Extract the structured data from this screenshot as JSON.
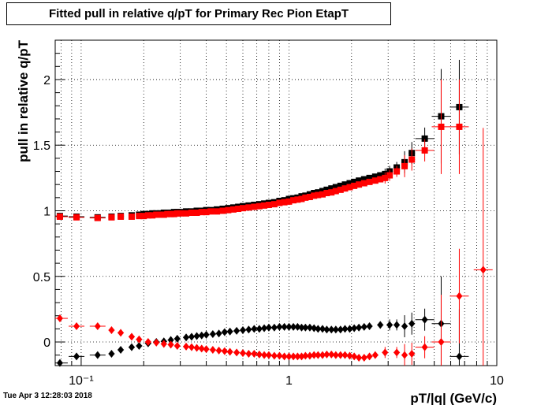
{
  "chart_data": {
    "type": "scatter",
    "title": "Fitted pull in relative q/pT for Primary Rec Pion EtapT",
    "xlabel": "pT/|q| (GeV/c)",
    "ylabel": "pull in relative q/pT",
    "xscale": "log",
    "xlim": [
      0.075,
      10
    ],
    "ylim": [
      -0.18,
      2.3
    ],
    "x_tick_labels": [
      "10⁻¹",
      "1",
      "10"
    ],
    "y_tick_labels": [
      "0",
      "0.5",
      "1",
      "1.5",
      "2"
    ],
    "grid": true,
    "series": [
      {
        "marker": "square",
        "color": "#000000",
        "points": [
          [
            0.079,
            0.96
          ],
          [
            0.095,
            0.955
          ],
          [
            0.12,
            0.95
          ],
          [
            0.14,
            0.955
          ],
          [
            0.155,
            0.96
          ],
          [
            0.175,
            0.965
          ],
          [
            0.19,
            0.97
          ],
          [
            0.2,
            0.975
          ],
          [
            0.21,
            0.975
          ],
          [
            0.22,
            0.98
          ],
          [
            0.23,
            0.98
          ],
          [
            0.24,
            0.98
          ],
          [
            0.25,
            0.985
          ],
          [
            0.26,
            0.985
          ],
          [
            0.27,
            0.985
          ],
          [
            0.28,
            0.99
          ],
          [
            0.29,
            0.99
          ],
          [
            0.3,
            0.99
          ],
          [
            0.32,
            0.995
          ],
          [
            0.34,
            0.995
          ],
          [
            0.36,
            1.0
          ],
          [
            0.38,
            1.0
          ],
          [
            0.4,
            1.005
          ],
          [
            0.42,
            1.005
          ],
          [
            0.45,
            1.01
          ],
          [
            0.48,
            1.015
          ],
          [
            0.51,
            1.02
          ],
          [
            0.54,
            1.025
          ],
          [
            0.57,
            1.03
          ],
          [
            0.6,
            1.035
          ],
          [
            0.64,
            1.04
          ],
          [
            0.68,
            1.045
          ],
          [
            0.72,
            1.05
          ],
          [
            0.76,
            1.055
          ],
          [
            0.8,
            1.06
          ],
          [
            0.85,
            1.065
          ],
          [
            0.9,
            1.075
          ],
          [
            0.95,
            1.08
          ],
          [
            1.0,
            1.09
          ],
          [
            1.05,
            1.095
          ],
          [
            1.1,
            1.1
          ],
          [
            1.15,
            1.11
          ],
          [
            1.2,
            1.115
          ],
          [
            1.26,
            1.125
          ],
          [
            1.32,
            1.135
          ],
          [
            1.38,
            1.14
          ],
          [
            1.45,
            1.15
          ],
          [
            1.52,
            1.16
          ],
          [
            1.6,
            1.17
          ],
          [
            1.68,
            1.18
          ],
          [
            1.77,
            1.19
          ],
          [
            1.86,
            1.2
          ],
          [
            1.96,
            1.21
          ],
          [
            2.06,
            1.22
          ],
          [
            2.17,
            1.23
          ],
          [
            2.3,
            1.24
          ],
          [
            2.44,
            1.25
          ],
          [
            2.6,
            1.26
          ],
          [
            2.75,
            1.27
          ],
          [
            2.9,
            1.28
          ],
          [
            3.05,
            1.3
          ],
          [
            3.3,
            1.33
          ],
          [
            3.6,
            1.37
          ],
          [
            3.9,
            1.44
          ],
          [
            4.5,
            1.55
          ],
          [
            5.4,
            1.72
          ],
          [
            6.6,
            1.79
          ]
        ]
      },
      {
        "marker": "square",
        "color": "#ff0000",
        "points": [
          [
            0.079,
            0.955
          ],
          [
            0.095,
            0.95
          ],
          [
            0.12,
            0.945
          ],
          [
            0.14,
            0.95
          ],
          [
            0.155,
            0.955
          ],
          [
            0.175,
            0.955
          ],
          [
            0.19,
            0.96
          ],
          [
            0.2,
            0.96
          ],
          [
            0.21,
            0.965
          ],
          [
            0.22,
            0.965
          ],
          [
            0.23,
            0.97
          ],
          [
            0.24,
            0.97
          ],
          [
            0.25,
            0.97
          ],
          [
            0.26,
            0.975
          ],
          [
            0.27,
            0.975
          ],
          [
            0.28,
            0.975
          ],
          [
            0.29,
            0.98
          ],
          [
            0.3,
            0.98
          ],
          [
            0.32,
            0.98
          ],
          [
            0.34,
            0.985
          ],
          [
            0.36,
            0.985
          ],
          [
            0.38,
            0.99
          ],
          [
            0.4,
            0.99
          ],
          [
            0.42,
            0.995
          ],
          [
            0.45,
            0.995
          ],
          [
            0.48,
            1.0
          ],
          [
            0.51,
            1.005
          ],
          [
            0.54,
            1.01
          ],
          [
            0.57,
            1.015
          ],
          [
            0.6,
            1.02
          ],
          [
            0.64,
            1.025
          ],
          [
            0.68,
            1.03
          ],
          [
            0.72,
            1.035
          ],
          [
            0.76,
            1.04
          ],
          [
            0.8,
            1.045
          ],
          [
            0.85,
            1.05
          ],
          [
            0.9,
            1.06
          ],
          [
            0.95,
            1.065
          ],
          [
            1.0,
            1.07
          ],
          [
            1.05,
            1.08
          ],
          [
            1.1,
            1.085
          ],
          [
            1.15,
            1.09
          ],
          [
            1.2,
            1.1
          ],
          [
            1.26,
            1.105
          ],
          [
            1.32,
            1.115
          ],
          [
            1.38,
            1.12
          ],
          [
            1.45,
            1.125
          ],
          [
            1.52,
            1.135
          ],
          [
            1.6,
            1.14
          ],
          [
            1.68,
            1.15
          ],
          [
            1.77,
            1.16
          ],
          [
            1.86,
            1.17
          ],
          [
            1.96,
            1.18
          ],
          [
            2.06,
            1.19
          ],
          [
            2.17,
            1.2
          ],
          [
            2.3,
            1.21
          ],
          [
            2.44,
            1.22
          ],
          [
            2.6,
            1.23
          ],
          [
            2.75,
            1.24
          ],
          [
            2.9,
            1.25
          ],
          [
            3.05,
            1.27
          ],
          [
            3.3,
            1.3
          ],
          [
            3.6,
            1.34
          ],
          [
            3.9,
            1.39
          ],
          [
            4.5,
            1.46
          ],
          [
            5.4,
            1.64
          ],
          [
            6.6,
            1.64
          ]
        ]
      },
      {
        "marker": "diamond",
        "color": "#000000",
        "points": [
          [
            0.079,
            -0.16
          ],
          [
            0.095,
            -0.11
          ],
          [
            0.12,
            -0.1
          ],
          [
            0.14,
            -0.09
          ],
          [
            0.155,
            -0.06
          ],
          [
            0.175,
            -0.04
          ],
          [
            0.19,
            -0.03
          ],
          [
            0.21,
            -0.01
          ],
          [
            0.23,
            0.0
          ],
          [
            0.25,
            0.005
          ],
          [
            0.27,
            0.015
          ],
          [
            0.29,
            0.025
          ],
          [
            0.32,
            0.035
          ],
          [
            0.34,
            0.04
          ],
          [
            0.36,
            0.045
          ],
          [
            0.38,
            0.05
          ],
          [
            0.4,
            0.055
          ],
          [
            0.43,
            0.06
          ],
          [
            0.46,
            0.065
          ],
          [
            0.49,
            0.075
          ],
          [
            0.52,
            0.08
          ],
          [
            0.56,
            0.085
          ],
          [
            0.6,
            0.09
          ],
          [
            0.64,
            0.095
          ],
          [
            0.68,
            0.1
          ],
          [
            0.72,
            0.1
          ],
          [
            0.76,
            0.105
          ],
          [
            0.8,
            0.11
          ],
          [
            0.85,
            0.11
          ],
          [
            0.9,
            0.115
          ],
          [
            0.95,
            0.115
          ],
          [
            1.0,
            0.115
          ],
          [
            1.05,
            0.115
          ],
          [
            1.1,
            0.115
          ],
          [
            1.15,
            0.11
          ],
          [
            1.2,
            0.11
          ],
          [
            1.26,
            0.11
          ],
          [
            1.32,
            0.105
          ],
          [
            1.38,
            0.1
          ],
          [
            1.45,
            0.1
          ],
          [
            1.52,
            0.095
          ],
          [
            1.6,
            0.095
          ],
          [
            1.68,
            0.095
          ],
          [
            1.77,
            0.095
          ],
          [
            1.86,
            0.1
          ],
          [
            1.96,
            0.1
          ],
          [
            2.06,
            0.105
          ],
          [
            2.17,
            0.11
          ],
          [
            2.3,
            0.115
          ],
          [
            2.44,
            0.12
          ],
          [
            2.75,
            0.13
          ],
          [
            3.05,
            0.13
          ],
          [
            3.3,
            0.13
          ],
          [
            3.6,
            0.12
          ],
          [
            3.9,
            0.14
          ],
          [
            4.5,
            0.17
          ],
          [
            5.4,
            0.14
          ],
          [
            6.6,
            -0.11
          ]
        ]
      },
      {
        "marker": "diamond",
        "color": "#ff0000",
        "points": [
          [
            0.079,
            0.18
          ],
          [
            0.095,
            0.12
          ],
          [
            0.12,
            0.12
          ],
          [
            0.14,
            0.09
          ],
          [
            0.155,
            0.07
          ],
          [
            0.175,
            0.04
          ],
          [
            0.19,
            0.02
          ],
          [
            0.21,
            0.0
          ],
          [
            0.23,
            -0.005
          ],
          [
            0.25,
            -0.015
          ],
          [
            0.27,
            -0.02
          ],
          [
            0.29,
            -0.03
          ],
          [
            0.32,
            -0.035
          ],
          [
            0.34,
            -0.04
          ],
          [
            0.36,
            -0.045
          ],
          [
            0.38,
            -0.05
          ],
          [
            0.4,
            -0.055
          ],
          [
            0.43,
            -0.06
          ],
          [
            0.46,
            -0.065
          ],
          [
            0.49,
            -0.07
          ],
          [
            0.52,
            -0.075
          ],
          [
            0.56,
            -0.08
          ],
          [
            0.6,
            -0.085
          ],
          [
            0.64,
            -0.09
          ],
          [
            0.68,
            -0.09
          ],
          [
            0.72,
            -0.095
          ],
          [
            0.76,
            -0.1
          ],
          [
            0.8,
            -0.1
          ],
          [
            0.85,
            -0.105
          ],
          [
            0.9,
            -0.105
          ],
          [
            0.95,
            -0.11
          ],
          [
            1.0,
            -0.11
          ],
          [
            1.05,
            -0.11
          ],
          [
            1.1,
            -0.11
          ],
          [
            1.15,
            -0.11
          ],
          [
            1.2,
            -0.105
          ],
          [
            1.26,
            -0.105
          ],
          [
            1.32,
            -0.1
          ],
          [
            1.38,
            -0.1
          ],
          [
            1.45,
            -0.1
          ],
          [
            1.52,
            -0.095
          ],
          [
            1.6,
            -0.095
          ],
          [
            1.68,
            -0.1
          ],
          [
            1.77,
            -0.1
          ],
          [
            1.86,
            -0.1
          ],
          [
            1.96,
            -0.105
          ],
          [
            2.06,
            -0.11
          ],
          [
            2.17,
            -0.12
          ],
          [
            2.3,
            -0.12
          ],
          [
            2.44,
            -0.11
          ],
          [
            2.6,
            -0.1
          ],
          [
            2.9,
            -0.08
          ],
          [
            3.3,
            -0.08
          ],
          [
            3.6,
            -0.1
          ],
          [
            3.9,
            -0.09
          ],
          [
            4.5,
            -0.04
          ],
          [
            5.4,
            0.0
          ],
          [
            6.6,
            0.35
          ],
          [
            8.6,
            0.55
          ]
        ]
      }
    ],
    "timestamp": "Tue Apr  3 12:28:03 2018"
  }
}
